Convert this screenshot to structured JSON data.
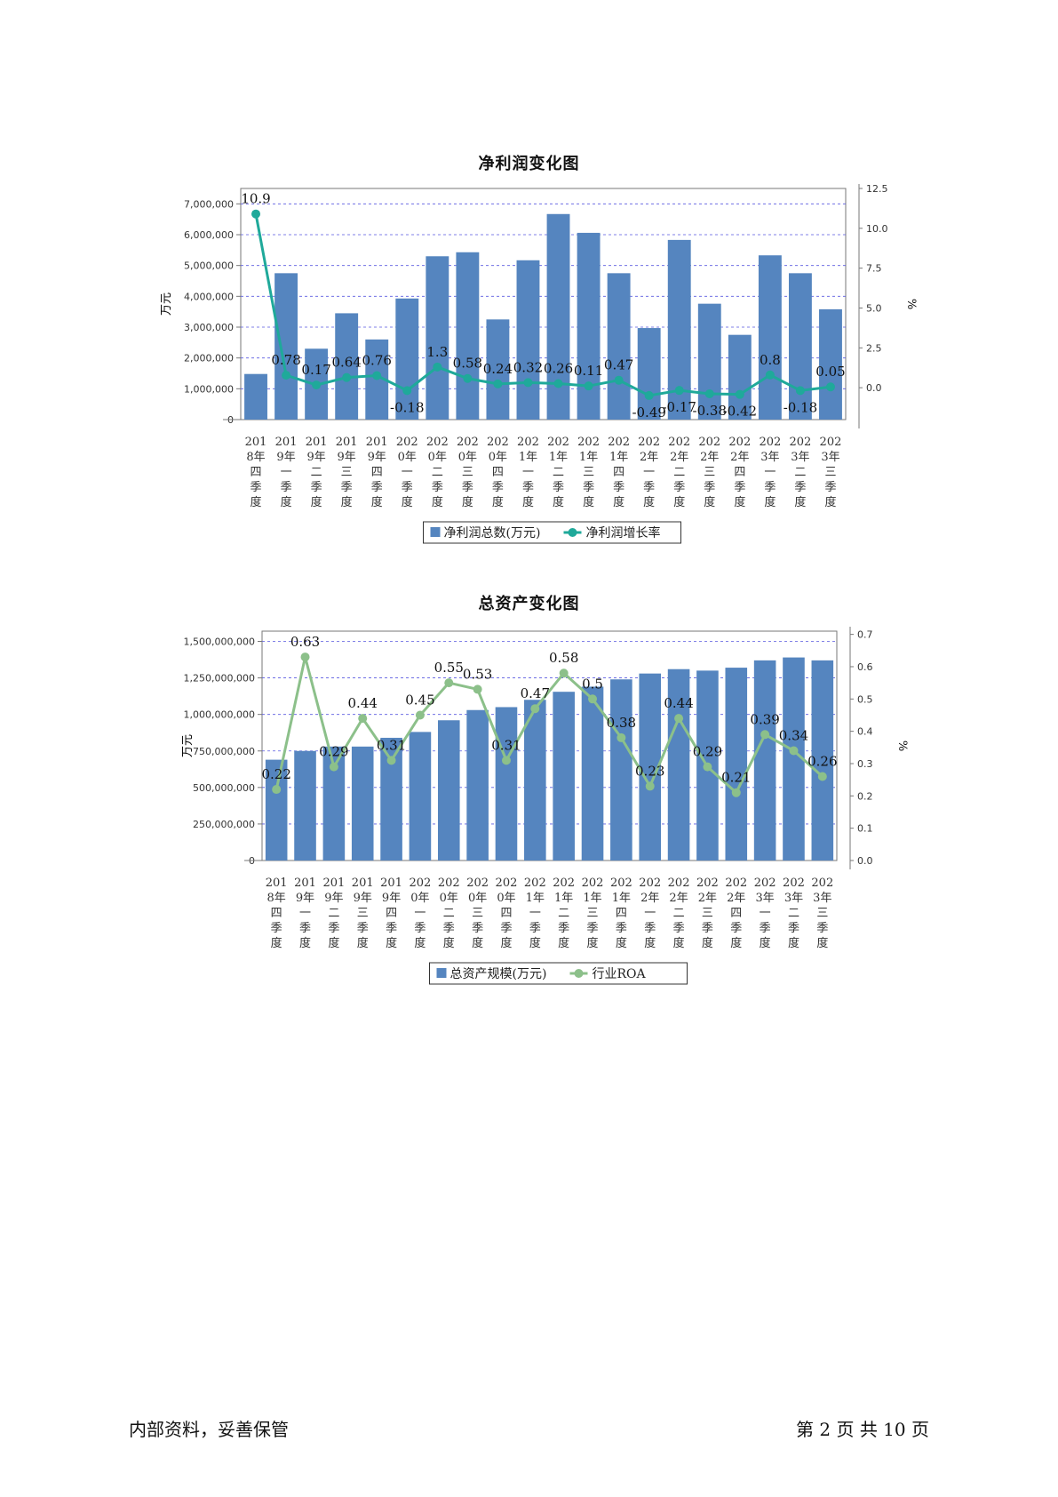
{
  "charts": [
    {
      "title": "净利润变化图",
      "bar_name": "净利润总数(万元)",
      "line_name": "净利润增长率",
      "left_unit": "万元",
      "right_unit": "%",
      "left_ticks": [
        "0",
        "1,000,000",
        "2,000,000",
        "3,000,000",
        "4,000,000",
        "5,000,000",
        "6,000,000",
        "7,000,000"
      ],
      "right_ticks": [
        "0.0",
        "2.5",
        "5.0",
        "7.5",
        "10.0",
        "12.5"
      ],
      "line_labels": [
        "10.9",
        "0.78",
        "0.17",
        "0.64",
        "0.76",
        "-0.18",
        "1.3",
        "0.58",
        "0.24",
        "0.32",
        "0.26",
        "0.11",
        "0.47",
        "-0.49",
        "-0.17",
        "-0.38",
        "-0.42",
        "0.8",
        "-0.18",
        "0.05"
      ]
    },
    {
      "title": "总资产变化图",
      "bar_name": "总资产规模(万元)",
      "line_name": "行业ROA",
      "left_unit": "万元",
      "right_unit": "%",
      "left_ticks": [
        "0",
        "250,000,000",
        "500,000,000",
        "750,000,000",
        "1,000,000,000",
        "1,250,000,000",
        "1,500,000,000"
      ],
      "right_ticks": [
        "0.0",
        "0.1",
        "0.2",
        "0.3",
        "0.4",
        "0.5",
        "0.6",
        "0.7"
      ],
      "line_labels": [
        "0.22",
        "0.63",
        "0.29",
        "0.44",
        "0.31",
        "0.45",
        "0.55",
        "0.53",
        "0.31",
        "0.47",
        "0.58",
        "0.5",
        "0.38",
        "0.23",
        "0.44",
        "0.29",
        "0.21",
        "0.39",
        "0.34",
        "0.26"
      ]
    }
  ],
  "chart_data": [
    {
      "type": "bar",
      "title": "净利润变化图",
      "categories": [
        "2018年四季度",
        "2019年一季度",
        "2019年二季度",
        "2019年三季度",
        "2019年四季度",
        "2020年一季度",
        "2020年二季度",
        "2020年三季度",
        "2020年四季度",
        "2021年一季度",
        "2021年二季度",
        "2021年三季度",
        "2021年四季度",
        "2022年一季度",
        "2022年二季度",
        "2022年三季度",
        "2022年四季度",
        "2023年一季度",
        "2023年二季度",
        "2023年三季度"
      ],
      "ylabel": "万元",
      "y2label": "%",
      "ylim": [
        0,
        7500000
      ],
      "y2lim": [
        -2,
        12.5
      ],
      "grid": true,
      "legend": "bottom",
      "series": [
        {
          "name": "净利润总数(万元)",
          "type": "bar",
          "color": "#5585bf",
          "values": [
            1480000,
            4750000,
            2300000,
            3450000,
            2600000,
            3930000,
            5300000,
            5430000,
            3250000,
            5170000,
            6670000,
            6060000,
            4750000,
            2970000,
            5830000,
            3760000,
            2750000,
            5330000,
            4750000,
            3580000
          ]
        },
        {
          "name": "净利润增长率",
          "type": "line",
          "axis": "right",
          "color": "#1fa99a",
          "values": [
            10.9,
            0.78,
            0.17,
            0.64,
            0.76,
            -0.18,
            1.3,
            0.58,
            0.24,
            0.32,
            0.26,
            0.11,
            0.47,
            -0.49,
            -0.17,
            -0.38,
            -0.42,
            0.8,
            -0.18,
            0.05
          ]
        }
      ]
    },
    {
      "type": "bar",
      "title": "总资产变化图",
      "categories": [
        "2018年四季度",
        "2019年一季度",
        "2019年二季度",
        "2019年三季度",
        "2019年四季度",
        "2020年一季度",
        "2020年二季度",
        "2020年三季度",
        "2020年四季度",
        "2021年一季度",
        "2021年二季度",
        "2021年三季度",
        "2021年四季度",
        "2022年一季度",
        "2022年二季度",
        "2022年三季度",
        "2022年四季度",
        "2023年一季度",
        "2023年二季度",
        "2023年三季度"
      ],
      "ylabel": "万元",
      "y2label": "%",
      "ylim": [
        0,
        1570000000
      ],
      "y2lim": [
        0,
        0.71
      ],
      "grid": true,
      "legend": "bottom",
      "series": [
        {
          "name": "总资产规模(万元)",
          "type": "bar",
          "color": "#5585bf",
          "values": [
            690000000,
            750000000,
            780000000,
            780000000,
            840000000,
            880000000,
            960000000,
            1030000000,
            1050000000,
            1100000000,
            1155000000,
            1190000000,
            1240000000,
            1280000000,
            1310000000,
            1300000000,
            1320000000,
            1370000000,
            1390000000,
            1370000000
          ]
        },
        {
          "name": "行业ROA",
          "type": "line",
          "axis": "right",
          "color": "#8cc08a",
          "values": [
            0.22,
            0.63,
            0.29,
            0.44,
            0.31,
            0.45,
            0.55,
            0.53,
            0.31,
            0.47,
            0.58,
            0.5,
            0.38,
            0.23,
            0.44,
            0.29,
            0.21,
            0.39,
            0.34,
            0.26
          ]
        }
      ]
    }
  ],
  "category_lines": [
    [
      "201",
      "8年",
      "四",
      "季",
      "度"
    ],
    [
      "201",
      "9年",
      "一",
      "季",
      "度"
    ],
    [
      "201",
      "9年",
      "二",
      "季",
      "度"
    ],
    [
      "201",
      "9年",
      "三",
      "季",
      "度"
    ],
    [
      "201",
      "9年",
      "四",
      "季",
      "度"
    ],
    [
      "202",
      "0年",
      "一",
      "季",
      "度"
    ],
    [
      "202",
      "0年",
      "二",
      "季",
      "度"
    ],
    [
      "202",
      "0年",
      "三",
      "季",
      "度"
    ],
    [
      "202",
      "0年",
      "四",
      "季",
      "度"
    ],
    [
      "202",
      "1年",
      "一",
      "季",
      "度"
    ],
    [
      "202",
      "1年",
      "二",
      "季",
      "度"
    ],
    [
      "202",
      "1年",
      "三",
      "季",
      "度"
    ],
    [
      "202",
      "1年",
      "四",
      "季",
      "度"
    ],
    [
      "202",
      "2年",
      "一",
      "季",
      "度"
    ],
    [
      "202",
      "2年",
      "二",
      "季",
      "度"
    ],
    [
      "202",
      "2年",
      "三",
      "季",
      "度"
    ],
    [
      "202",
      "2年",
      "四",
      "季",
      "度"
    ],
    [
      "202",
      "3年",
      "一",
      "季",
      "度"
    ],
    [
      "202",
      "3年",
      "二",
      "季",
      "度"
    ],
    [
      "202",
      "3年",
      "三",
      "季",
      "度"
    ]
  ],
  "footer": {
    "left": "内部资料，妥善保管",
    "right": "第 2 页   共 10 页"
  }
}
